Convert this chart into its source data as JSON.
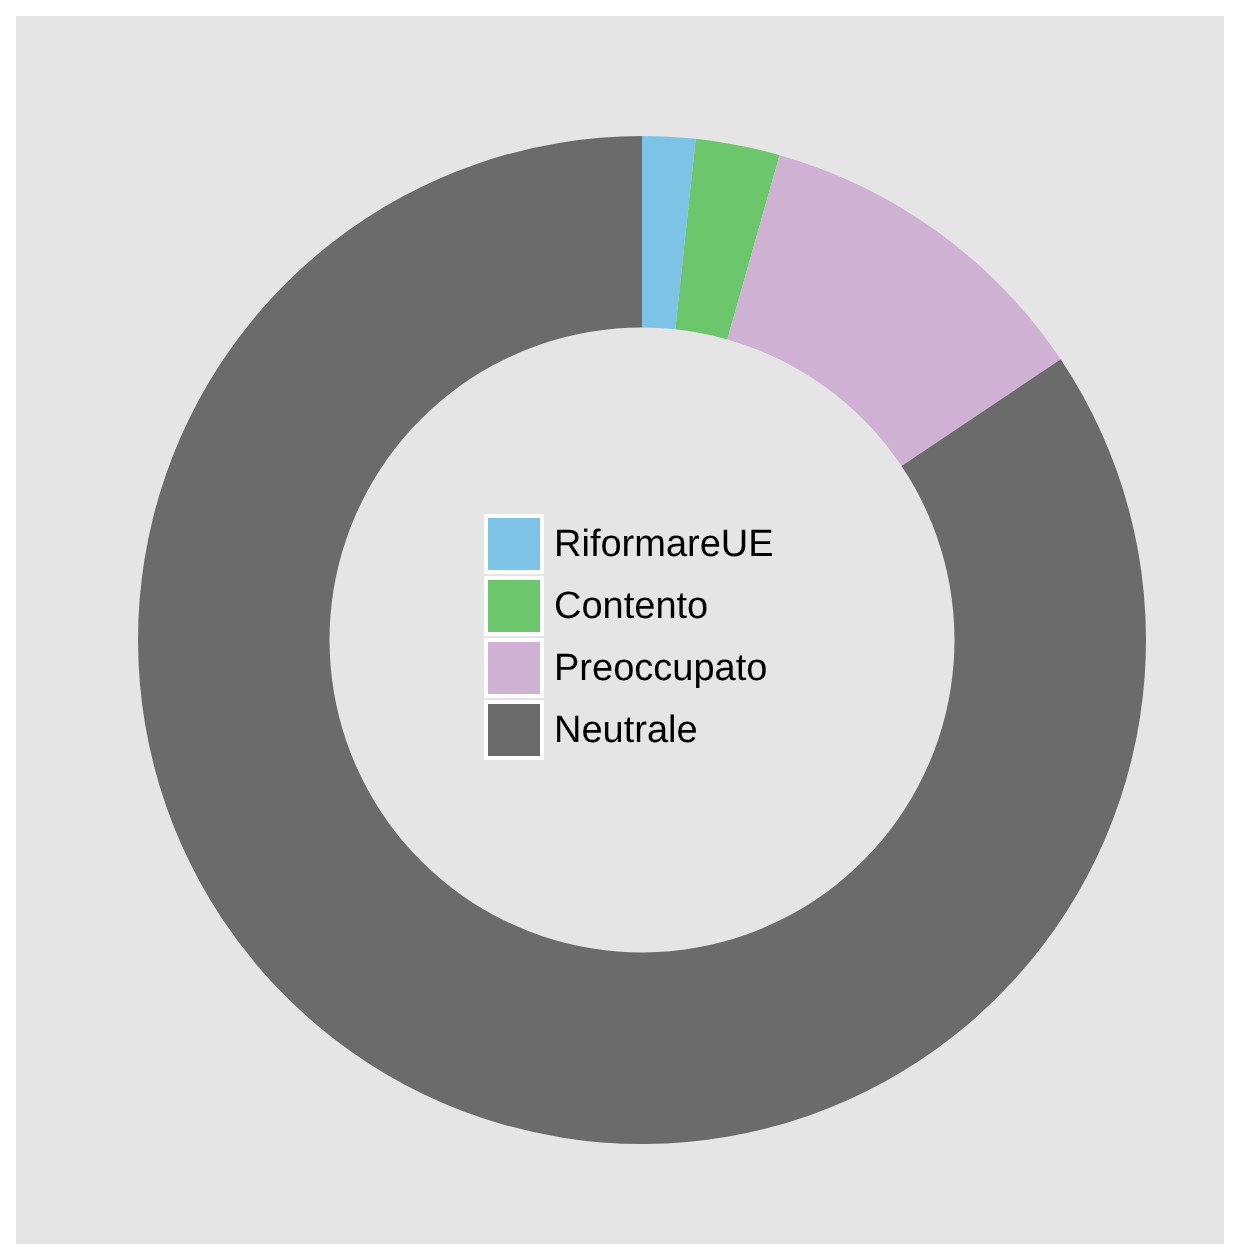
{
  "chart_data": {
    "type": "donut",
    "categories": [
      "RiformareUE",
      "Contento",
      "Preoccupato",
      "Neutrale"
    ],
    "values": [
      1.7,
      2.7,
      11.2,
      84.4
    ],
    "colors": [
      "#7cc3e6",
      "#6cc66b",
      "#cfb2d3",
      "#6b6b6b"
    ],
    "legend": "center"
  }
}
